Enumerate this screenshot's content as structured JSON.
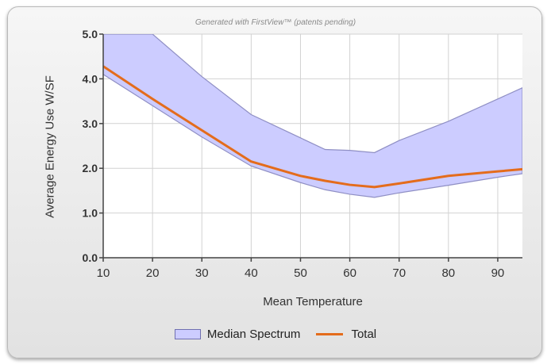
{
  "chart_data": {
    "type": "area",
    "watermark": "Generated with FirstView™ (patents pending)",
    "xlabel": "Mean Temperature",
    "ylabel": "Average Energy Use W/SF",
    "xlim": [
      10,
      95
    ],
    "ylim": [
      0,
      5
    ],
    "x_ticks": [
      "10",
      "20",
      "30",
      "40",
      "50",
      "60",
      "70",
      "80",
      "90"
    ],
    "y_ticks": [
      "0.0",
      "1.0",
      "2.0",
      "3.0",
      "4.0",
      "5.0"
    ],
    "grid": true,
    "legend_position": "bottom",
    "series": [
      {
        "name": "Median Spectrum",
        "kind": "band",
        "color": "#ccccff",
        "x": [
          10,
          20,
          30,
          40,
          50,
          55,
          60,
          65,
          70,
          80,
          90,
          95
        ],
        "lower": [
          4.1,
          3.4,
          2.7,
          2.05,
          1.68,
          1.52,
          1.42,
          1.35,
          1.45,
          1.62,
          1.8,
          1.88
        ],
        "upper": [
          5.0,
          5.0,
          4.05,
          3.2,
          2.68,
          2.42,
          2.4,
          2.35,
          2.62,
          3.05,
          3.55,
          3.8
        ]
      },
      {
        "name": "Total",
        "kind": "line",
        "color": "#e46c1c",
        "x": [
          10,
          20,
          30,
          40,
          50,
          55,
          60,
          65,
          70,
          80,
          90,
          95
        ],
        "values": [
          4.28,
          3.55,
          2.85,
          2.15,
          1.83,
          1.72,
          1.63,
          1.58,
          1.66,
          1.83,
          1.93,
          1.98
        ]
      }
    ]
  }
}
